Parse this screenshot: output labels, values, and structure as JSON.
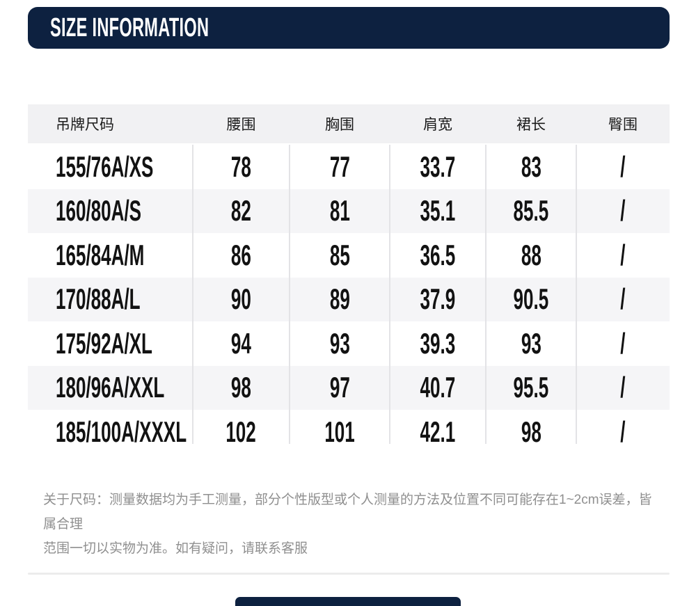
{
  "section_header": {
    "title": "SIZE INFORMATION"
  },
  "size_table": {
    "columns": [
      "吊牌尺码",
      "腰围",
      "胸围",
      "肩宽",
      "裙长",
      "臀围"
    ],
    "rows": [
      {
        "cells": [
          "155/76A/XS",
          "78",
          "77",
          "33.7",
          "83",
          "/"
        ]
      },
      {
        "cells": [
          "160/80A/S",
          "82",
          "81",
          "35.1",
          "85.5",
          "/"
        ]
      },
      {
        "cells": [
          "165/84A/M",
          "86",
          "85",
          "36.5",
          "88",
          "/"
        ]
      },
      {
        "cells": [
          "170/88A/L",
          "90",
          "89",
          "37.9",
          "90.5",
          "/"
        ]
      },
      {
        "cells": [
          "175/92A/XL",
          "94",
          "93",
          "39.3",
          "93",
          "/"
        ]
      },
      {
        "cells": [
          "180/96A/XXL",
          "98",
          "97",
          "40.7",
          "95.5",
          "/"
        ]
      },
      {
        "cells": [
          "185/100A/XXXL",
          "102",
          "101",
          "42.1",
          "98",
          "/"
        ]
      }
    ]
  },
  "note": {
    "line1": "关于尺码：测量数据均为手工测量，部分个性版型或个人测量的方法及位置不同可能存在1~2cm误差，皆属合理",
    "line2": "范围一切以实物为准。如有疑问，请联系客服"
  },
  "colors": {
    "navy": "#0d2140",
    "table_header_bg": "#f1f1f3",
    "alt_row_bg": "#f5f5f7",
    "divider": "#e3e3e6",
    "note_text": "#8f8f8f",
    "separator": "#ececec"
  }
}
